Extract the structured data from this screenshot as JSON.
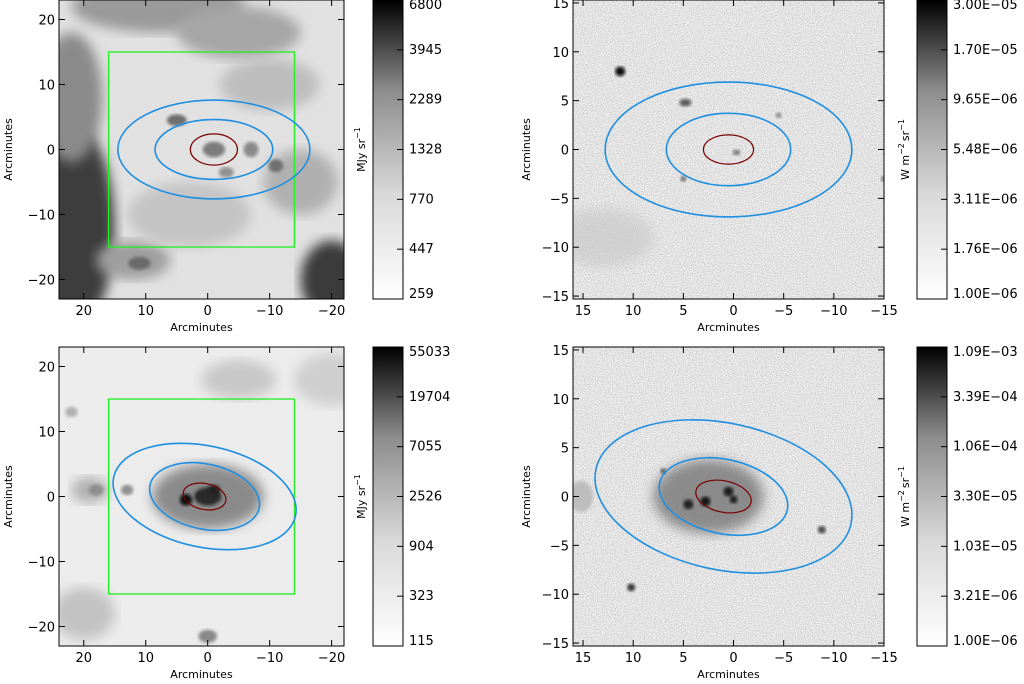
{
  "colors": {
    "contour_inner": "#7a0000",
    "contour_outer": "#1f8fe0",
    "box": "#22ee22"
  },
  "chart_data": [
    {
      "type": "heatmap",
      "panel": "top-left",
      "xlabel": "Arcminutes",
      "ylabel": "Arcminutes",
      "xlim": [
        24,
        -22
      ],
      "ylim": [
        -23,
        23
      ],
      "xticks": [
        "20",
        "10",
        "0",
        "−10",
        "−20"
      ],
      "yticks": [
        "−20",
        "−10",
        "0",
        "10",
        "20"
      ],
      "xtick_values": [
        20,
        10,
        0,
        -10,
        -20
      ],
      "ytick_values": [
        -20,
        -10,
        0,
        10,
        20
      ],
      "box": {
        "x": [
          16,
          -14
        ],
        "y": [
          -15,
          15
        ]
      },
      "ellipses": [
        {
          "role": "inner",
          "cx": -1,
          "cy": 0,
          "rx": 3.8,
          "ry": 2.4
        },
        {
          "role": "outer",
          "cx": -1,
          "cy": 0,
          "rx": 9.5,
          "ry": 4.6
        },
        {
          "role": "outer",
          "cx": -1,
          "cy": 0,
          "rx": 15.5,
          "ry": 7.6
        }
      ],
      "colorbar": {
        "label": "MJy sr",
        "label_exp": "−1",
        "ticks": [
          "6800",
          "3945",
          "2289",
          "1328",
          "770",
          "447",
          "259"
        ]
      }
    },
    {
      "type": "heatmap",
      "panel": "top-right",
      "xlabel": "Arcminutes",
      "ylabel": "Arcminutes",
      "xlim": [
        16,
        -15
      ],
      "ylim": [
        -15.3,
        15.3
      ],
      "xticks": [
        "15",
        "10",
        "5",
        "0",
        "−5",
        "−10",
        "−15"
      ],
      "yticks": [
        "−15",
        "−10",
        "−5",
        "0",
        "5",
        "10",
        "15"
      ],
      "xtick_values": [
        15,
        10,
        5,
        0,
        -5,
        -10,
        -15
      ],
      "ytick_values": [
        -15,
        -10,
        -5,
        0,
        5,
        10,
        15
      ],
      "ellipses": [
        {
          "role": "inner",
          "cx": 0.5,
          "cy": 0,
          "rx": 2.5,
          "ry": 1.5
        },
        {
          "role": "outer",
          "cx": 0.5,
          "cy": 0,
          "rx": 6.2,
          "ry": 3.7
        },
        {
          "role": "outer",
          "cx": 0.5,
          "cy": 0,
          "rx": 12.3,
          "ry": 6.9
        }
      ],
      "colorbar": {
        "label": "W m",
        "label_exp": "−2",
        "label_tail": "sr",
        "label_exp2": "−1",
        "ticks": [
          "3.00E−05",
          "1.70E−05",
          "9.65E−06",
          "5.48E−06",
          "3.11E−06",
          "1.76E−06",
          "1.00E−06"
        ]
      }
    },
    {
      "type": "heatmap",
      "panel": "bottom-left",
      "xlabel": "Arcminutes",
      "ylabel": "Arcminutes",
      "xlim": [
        24,
        -22
      ],
      "ylim": [
        -23,
        23
      ],
      "xticks": [
        "20",
        "10",
        "0",
        "−10",
        "−20"
      ],
      "yticks": [
        "−20",
        "−10",
        "0",
        "10",
        "20"
      ],
      "xtick_values": [
        20,
        10,
        0,
        -10,
        -20
      ],
      "ytick_values": [
        -20,
        -10,
        0,
        10,
        20
      ],
      "box": {
        "x": [
          16,
          -14
        ],
        "y": [
          -15,
          15
        ]
      },
      "ellipses": [
        {
          "role": "inner",
          "cx": 0.5,
          "cy": 0,
          "rx": 3.5,
          "ry": 2.0,
          "angle": 12
        },
        {
          "role": "outer",
          "cx": 0.5,
          "cy": 0,
          "rx": 9.0,
          "ry": 5.0,
          "angle": 12
        },
        {
          "role": "outer",
          "cx": 0.5,
          "cy": 0,
          "rx": 15.0,
          "ry": 7.8,
          "angle": 12
        }
      ],
      "colorbar": {
        "label": "MJy sr",
        "label_exp": "−1",
        "ticks": [
          "55033",
          "19704",
          "7055",
          "2526",
          "904",
          "323",
          "115"
        ]
      }
    },
    {
      "type": "heatmap",
      "panel": "bottom-right",
      "xlabel": "Arcminutes",
      "ylabel": "Arcminutes",
      "xlim": [
        16,
        -15
      ],
      "ylim": [
        -15.3,
        15.3
      ],
      "xticks": [
        "15",
        "10",
        "5",
        "0",
        "−5",
        "−10",
        "−15"
      ],
      "yticks": [
        "−15",
        "−10",
        "−5",
        "0",
        "5",
        "10",
        "15"
      ],
      "xtick_values": [
        15,
        10,
        5,
        0,
        -5,
        -10,
        -15
      ],
      "ytick_values": [
        -15,
        -10,
        -5,
        0,
        5,
        10,
        15
      ],
      "ellipses": [
        {
          "role": "inner",
          "cx": 1.0,
          "cy": 0,
          "rx": 2.8,
          "ry": 1.6,
          "angle": 12
        },
        {
          "role": "outer",
          "cx": 1.0,
          "cy": 0,
          "rx": 6.5,
          "ry": 3.8,
          "angle": 12
        },
        {
          "role": "outer",
          "cx": 1.0,
          "cy": 0,
          "rx": 13.0,
          "ry": 7.5,
          "angle": 12
        }
      ],
      "colorbar": {
        "label": "W m",
        "label_exp": "−2",
        "label_tail": "sr",
        "label_exp2": "−1",
        "ticks": [
          "1.09E−03",
          "3.39E−04",
          "1.06E−04",
          "3.30E−05",
          "1.03E−05",
          "3.21E−06",
          "1.00E−06"
        ]
      }
    }
  ]
}
